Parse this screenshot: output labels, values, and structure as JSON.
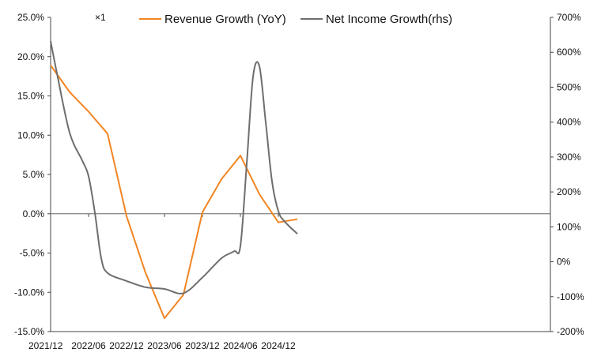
{
  "chart_data": {
    "type": "line",
    "title": "",
    "multiplier_label": "×1",
    "x_ticks": [
      "2021/12",
      "2022/06",
      "2022/12",
      "2023/06",
      "2023/12",
      "2024/06",
      "2024/12"
    ],
    "left_axis": {
      "ylim": [
        -15,
        25
      ],
      "ticks": [
        "25.0%",
        "20.0%",
        "15.0%",
        "10.0%",
        "5.0%",
        "0.0%",
        "-5.0%",
        "-10.0%",
        "-15.0%"
      ]
    },
    "right_axis": {
      "ylim": [
        -200,
        700
      ],
      "ticks": [
        "700%",
        "600%",
        "500%",
        "400%",
        "300%",
        "200%",
        "100%",
        "0%",
        "-100%",
        "-200%"
      ]
    },
    "grid": false,
    "legend_position": "top",
    "series": [
      {
        "name": "Revenue Growth (YoY)",
        "axis": "left",
        "color": "#f28522",
        "points": [
          [
            "2021/12",
            18.9
          ],
          [
            "2022/03",
            15.5
          ],
          [
            "2022/06",
            13.0
          ],
          [
            "2022/09",
            10.2
          ],
          [
            "2022/12",
            -0.3
          ],
          [
            "2023/03",
            -7.5
          ],
          [
            "2023/06",
            -13.3
          ],
          [
            "2023/09",
            -10.3
          ],
          [
            "2023/12",
            0.2
          ],
          [
            "2024/03",
            4.4
          ],
          [
            "2024/06",
            7.4
          ],
          [
            "2024/09",
            2.5
          ],
          [
            "2024/12",
            -1.1
          ],
          [
            "2025/03",
            -0.7
          ]
        ]
      },
      {
        "name": "Net Income Growth(rhs)",
        "axis": "right",
        "color": "#6e6e6e",
        "points": [
          [
            "2021/12",
            632
          ],
          [
            "2022/01",
            540
          ],
          [
            "2022/03",
            370
          ],
          [
            "2022/05",
            290
          ],
          [
            "2022/06",
            245
          ],
          [
            "2022/07",
            140
          ],
          [
            "2022/08",
            10
          ],
          [
            "2022/09",
            -32
          ],
          [
            "2022/12",
            -55
          ],
          [
            "2023/03",
            -73
          ],
          [
            "2023/06",
            -78
          ],
          [
            "2023/09",
            -90
          ],
          [
            "2023/12",
            -45
          ],
          [
            "2024/03",
            10
          ],
          [
            "2024/05",
            30
          ],
          [
            "2024/06",
            45
          ],
          [
            "2024/07",
            280
          ],
          [
            "2024/08",
            530
          ],
          [
            "2024/09",
            560
          ],
          [
            "2024/10",
            400
          ],
          [
            "2024/11",
            230
          ],
          [
            "2024/12",
            145
          ],
          [
            "2025/01",
            115
          ],
          [
            "2025/03",
            80
          ]
        ]
      }
    ]
  }
}
